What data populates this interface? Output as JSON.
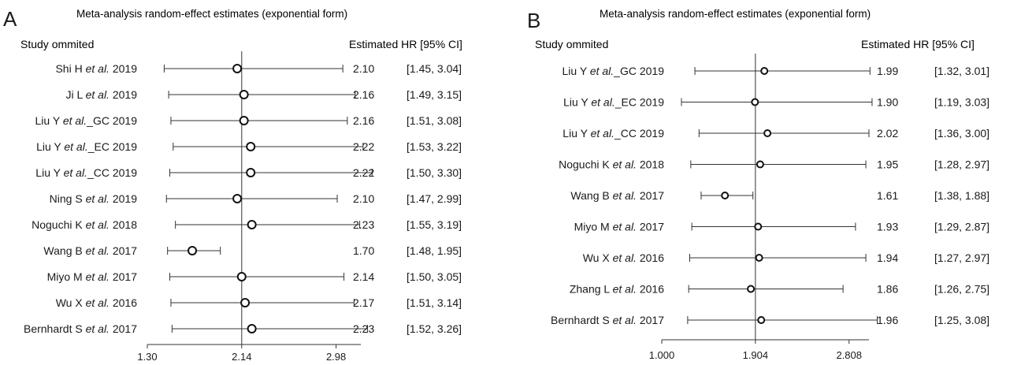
{
  "panels": [
    {
      "letter": "A",
      "title": "Meta-analysis random-effect estimates (exponential form)",
      "left_header": "Study ommited",
      "right_header": "Estimated HR [95% CI]"
    },
    {
      "letter": "B",
      "title": "Meta-analysis random-effect estimates (exponential form)",
      "left_header": "Study ommited",
      "right_header": "Estimated HR [95% CI]"
    }
  ],
  "chart_data": [
    {
      "type": "forest",
      "xlim": [
        1.3,
        3.2
      ],
      "xticks": [
        1.3,
        2.14,
        2.98
      ],
      "xtick_labels": [
        "1.30",
        "2.14",
        "2.98"
      ],
      "reference_line": 2.14,
      "rows": [
        {
          "author": "Shi H",
          "suffix": "",
          "year": "2019",
          "hr": 2.1,
          "ci": [
            1.45,
            3.04
          ],
          "hr_label": "2.10",
          "ci_label": "[1.45, 3.04]"
        },
        {
          "author": "Ji L",
          "suffix": "",
          "year": "2019",
          "hr": 2.16,
          "ci": [
            1.49,
            3.15
          ],
          "hr_label": "2.16",
          "ci_label": "[1.49, 3.15]"
        },
        {
          "author": "Liu Y",
          "suffix": "_GC",
          "year": "2019",
          "hr": 2.16,
          "ci": [
            1.51,
            3.08
          ],
          "hr_label": "2.16",
          "ci_label": "[1.51, 3.08]"
        },
        {
          "author": "Liu Y",
          "suffix": "_EC",
          "year": "2019",
          "hr": 2.22,
          "ci": [
            1.53,
            3.22
          ],
          "hr_label": "2.22",
          "ci_label": "[1.53, 3.22]"
        },
        {
          "author": "Liu Y",
          "suffix": "_CC",
          "year": "2019",
          "hr": 2.22,
          "ci": [
            1.5,
            3.3
          ],
          "hr_label": "2.22",
          "ci_label": "[1.50, 3.30]"
        },
        {
          "author": "Ning S",
          "suffix": "",
          "year": "2019",
          "hr": 2.1,
          "ci": [
            1.47,
            2.99
          ],
          "hr_label": "2.10",
          "ci_label": "[1.47, 2.99]"
        },
        {
          "author": "Noguchi K",
          "suffix": "",
          "year": "2018",
          "hr": 2.23,
          "ci": [
            1.55,
            3.19
          ],
          "hr_label": "2.23",
          "ci_label": "[1.55, 3.19]"
        },
        {
          "author": "Wang B",
          "suffix": "",
          "year": "2017",
          "hr": 1.7,
          "ci": [
            1.48,
            1.95
          ],
          "hr_label": "1.70",
          "ci_label": "[1.48, 1.95]"
        },
        {
          "author": "Miyo M",
          "suffix": "",
          "year": "2017",
          "hr": 2.14,
          "ci": [
            1.5,
            3.05
          ],
          "hr_label": "2.14",
          "ci_label": "[1.50, 3.05]"
        },
        {
          "author": "Wu X",
          "suffix": "",
          "year": "2016",
          "hr": 2.17,
          "ci": [
            1.51,
            3.14
          ],
          "hr_label": "2.17",
          "ci_label": "[1.51, 3.14]"
        },
        {
          "author": "Bernhardt S",
          "suffix": "",
          "year": "2017",
          "hr": 2.23,
          "ci": [
            1.52,
            3.26
          ],
          "hr_label": "2.23",
          "ci_label": "[1.52, 3.26]"
        }
      ]
    },
    {
      "type": "forest",
      "xlim": [
        1.0,
        3.0
      ],
      "xticks": [
        1.0,
        1.904,
        2.808
      ],
      "xtick_labels": [
        "1.000",
        "1.904",
        "2.808"
      ],
      "reference_line": 1.904,
      "rows": [
        {
          "author": "Liu Y",
          "suffix": "_GC",
          "year": "2019",
          "hr": 1.99,
          "ci": [
            1.32,
            3.01
          ],
          "hr_label": "1.99",
          "ci_label": "[1.32, 3.01]"
        },
        {
          "author": "Liu Y",
          "suffix": "_EC",
          "year": "2019",
          "hr": 1.9,
          "ci": [
            1.19,
            3.03
          ],
          "hr_label": "1.90",
          "ci_label": "[1.19, 3.03]"
        },
        {
          "author": "Liu Y",
          "suffix": "_CC",
          "year": "2019",
          "hr": 2.02,
          "ci": [
            1.36,
            3.0
          ],
          "hr_label": "2.02",
          "ci_label": "[1.36, 3.00]"
        },
        {
          "author": "Noguchi K",
          "suffix": "",
          "year": "2018",
          "hr": 1.95,
          "ci": [
            1.28,
            2.97
          ],
          "hr_label": "1.95",
          "ci_label": "[1.28, 2.97]"
        },
        {
          "author": "Wang B",
          "suffix": "",
          "year": "2017",
          "hr": 1.61,
          "ci": [
            1.38,
            1.88
          ],
          "hr_label": "1.61",
          "ci_label": "[1.38, 1.88]"
        },
        {
          "author": "Miyo M",
          "suffix": "",
          "year": "2017",
          "hr": 1.93,
          "ci": [
            1.29,
            2.87
          ],
          "hr_label": "1.93",
          "ci_label": "[1.29, 2.87]"
        },
        {
          "author": "Wu X",
          "suffix": "",
          "year": "2016",
          "hr": 1.94,
          "ci": [
            1.27,
            2.97
          ],
          "hr_label": "1.94",
          "ci_label": "[1.27, 2.97]"
        },
        {
          "author": "Zhang L",
          "suffix": "",
          "year": "2016",
          "hr": 1.86,
          "ci": [
            1.26,
            2.75
          ],
          "hr_label": "1.86",
          "ci_label": "[1.26, 2.75]"
        },
        {
          "author": "Bernhardt S",
          "suffix": "",
          "year": "2017",
          "hr": 1.96,
          "ci": [
            1.25,
            3.08
          ],
          "hr_label": "1.96",
          "ci_label": "[1.25, 3.08]"
        }
      ]
    }
  ]
}
